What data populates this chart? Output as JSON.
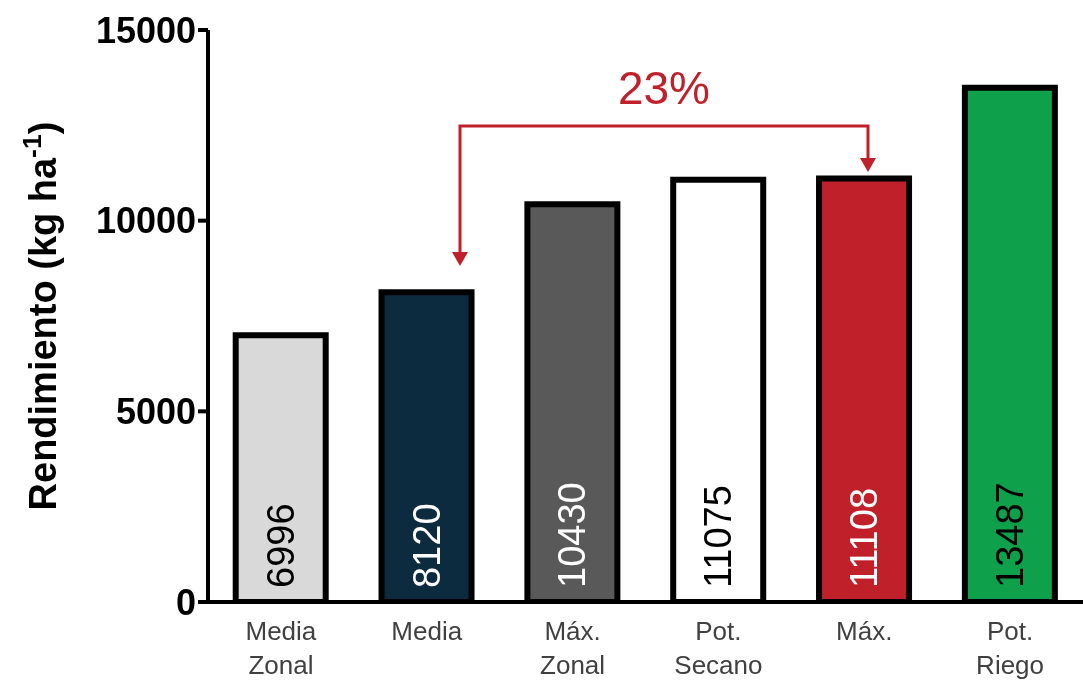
{
  "chart_data": {
    "type": "bar",
    "ylabel": "Rendimiento (kg ha$^{-1}$)",
    "categories": [
      "Media Zonal",
      "Media",
      "Máx. Zonal",
      "Pot. Secano",
      "Máx.",
      "Pot. Riego"
    ],
    "values": [
      6996,
      8120,
      10430,
      11075,
      11108,
      13487
    ],
    "colors": [
      "#d9d9d9",
      "#0d2b3e",
      "#595959",
      "#ffffff",
      "#c0202a",
      "#0ea04b"
    ],
    "ylim": [
      0,
      15000
    ],
    "yticks": [
      0,
      5000,
      10000,
      15000
    ],
    "data_labels": true,
    "annotations": [
      "23%"
    ]
  }
}
